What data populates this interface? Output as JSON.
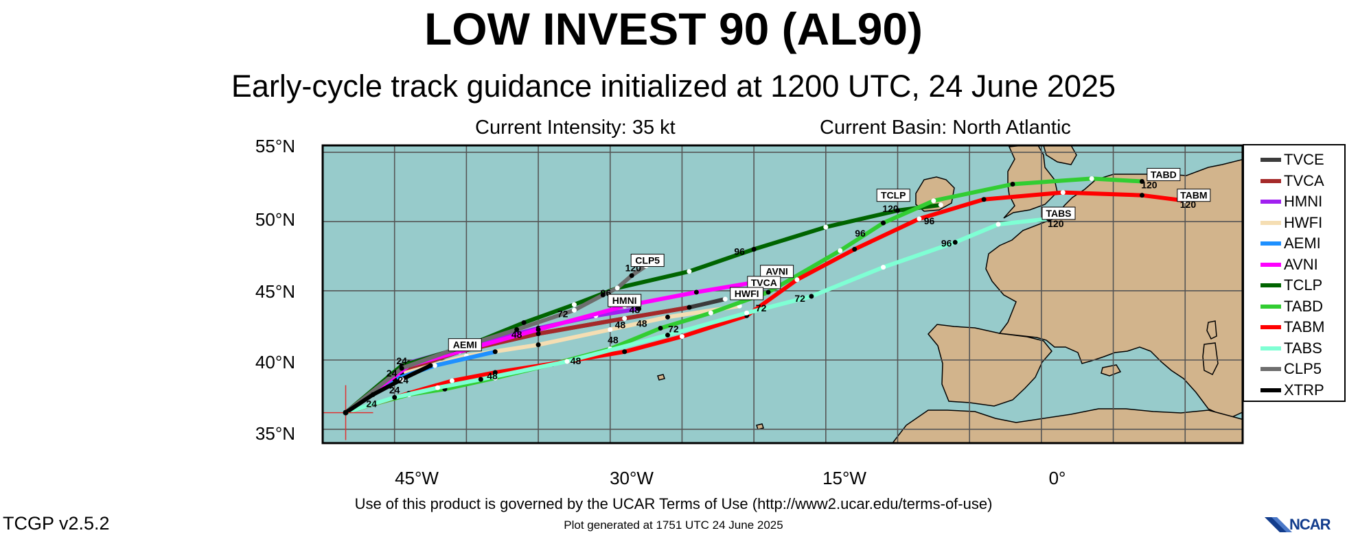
{
  "header": {
    "title": "LOW INVEST 90 (AL90)",
    "subtitle": "Early-cycle track guidance initialized at 1200 UTC, 24 June 2025",
    "current_intensity": "Current Intensity: 35 kt",
    "current_basin": "Current Basin: North Atlantic"
  },
  "map": {
    "lat_range": [
      34,
      55.5
    ],
    "lon_range": [
      -50,
      14
    ],
    "lat_ticks": [
      "55°N",
      "50°N",
      "45°N",
      "40°N",
      "35°N"
    ],
    "lat_values": [
      55,
      50,
      45,
      40,
      35
    ],
    "lon_ticks": [
      "45°W",
      "30°W",
      "15°W",
      "0°"
    ],
    "lon_values": [
      -45,
      -30,
      -15,
      0
    ],
    "grid": true,
    "ocean_color": "#97cbcb",
    "land_color": "#d2b48c",
    "storm_position": {
      "lon": -48.4,
      "lat": 36.2
    }
  },
  "chart_data": {
    "type": "line",
    "title": "LOW INVEST 90 (AL90)",
    "x_axis": "Longitude",
    "y_axis": "Latitude",
    "series": [
      {
        "name": "TVCE",
        "color": "#3c3c3c",
        "points": [
          [
            -48.4,
            36.2
          ],
          [
            -44.5,
            39.2
          ],
          [
            -40.5,
            40.6
          ],
          [
            -35,
            41.9
          ],
          [
            -29,
            43.0
          ],
          [
            -24.5,
            43.8
          ],
          [
            -22,
            44.4
          ]
        ]
      },
      {
        "name": "TVCA",
        "color": "#a52a2a",
        "points": [
          [
            -48.4,
            36.2
          ],
          [
            -44.5,
            39.2
          ],
          [
            -40.5,
            40.6
          ],
          [
            -35,
            41.9
          ],
          [
            -29,
            43.0
          ],
          [
            -24.5,
            43.8
          ]
        ]
      },
      {
        "name": "HMNI",
        "color": "#a020f0",
        "points": [
          [
            -48.4,
            36.2
          ],
          [
            -44,
            39.8
          ],
          [
            -39.5,
            41.1
          ],
          [
            -35,
            42.3
          ],
          [
            -31,
            43.2
          ],
          [
            -28,
            43.7
          ]
        ]
      },
      {
        "name": "HWFI",
        "color": "#f5deb3",
        "points": [
          [
            -48.4,
            36.2
          ],
          [
            -44.5,
            39.0
          ],
          [
            -40,
            40.3
          ],
          [
            -35,
            41.1
          ],
          [
            -30,
            42.2
          ],
          [
            -26,
            43.1
          ],
          [
            -21,
            43.9
          ]
        ]
      },
      {
        "name": "AEMI",
        "color": "#1e90ff",
        "points": [
          [
            -48.4,
            36.2
          ],
          [
            -45,
            38.6
          ],
          [
            -42.2,
            39.6
          ],
          [
            -38,
            40.6
          ]
        ]
      },
      {
        "name": "AVNI",
        "color": "#ff00ff",
        "points": [
          [
            -48.4,
            36.2
          ],
          [
            -44,
            39.6
          ],
          [
            -39.5,
            40.9
          ],
          [
            -35,
            42.2
          ],
          [
            -29,
            43.9
          ],
          [
            -24,
            44.9
          ],
          [
            -20,
            45.6
          ]
        ]
      },
      {
        "name": "TCLP",
        "color": "#006400",
        "points": [
          [
            -48.4,
            36.2
          ],
          [
            -44.5,
            39.6
          ],
          [
            -40,
            41.0
          ],
          [
            -36,
            42.7
          ],
          [
            -32.5,
            44.0
          ],
          [
            -29.5,
            45.2
          ],
          [
            -24.5,
            46.4
          ],
          [
            -20,
            48.0
          ],
          [
            -15,
            49.6
          ],
          [
            -10,
            50.8
          ],
          [
            -7,
            51.2
          ]
        ]
      },
      {
        "name": "TABD",
        "color": "#32cd32",
        "points": [
          [
            -48.4,
            36.2
          ],
          [
            -46.5,
            36.8
          ],
          [
            -44,
            37.5
          ],
          [
            -41.5,
            37.9
          ],
          [
            -38,
            38.7
          ],
          [
            -34,
            39.7
          ],
          [
            -30,
            40.8
          ],
          [
            -26.5,
            42.3
          ],
          [
            -23,
            43.4
          ],
          [
            -19,
            44.9
          ],
          [
            -14,
            47.9
          ],
          [
            -11,
            49.9
          ],
          [
            -7.5,
            51.5
          ],
          [
            -2,
            52.7
          ],
          [
            3.5,
            53.1
          ],
          [
            7,
            52.9
          ]
        ]
      },
      {
        "name": "TABM",
        "color": "#ff0000",
        "points": [
          [
            -48.4,
            36.2
          ],
          [
            -44,
            37.6
          ],
          [
            -41,
            38.5
          ],
          [
            -38,
            39.1
          ],
          [
            -33,
            39.9
          ],
          [
            -29,
            40.6
          ],
          [
            -25,
            41.7
          ],
          [
            -20.5,
            43.2
          ],
          [
            -17,
            45.8
          ],
          [
            -13,
            48.0
          ],
          [
            -8.5,
            50.2
          ],
          [
            -4,
            51.6
          ],
          [
            1.5,
            52.1
          ],
          [
            7,
            51.9
          ],
          [
            10,
            51.5
          ]
        ]
      },
      {
        "name": "TABS",
        "color": "#7fffd4",
        "points": [
          [
            -48.4,
            36.2
          ],
          [
            -45,
            37.3
          ],
          [
            -42,
            38.0
          ],
          [
            -39,
            38.6
          ],
          [
            -33,
            39.9
          ],
          [
            -26,
            41.8
          ],
          [
            -20.5,
            43.4
          ],
          [
            -16,
            44.6
          ],
          [
            -11,
            46.7
          ],
          [
            -6,
            48.5
          ],
          [
            -3,
            49.8
          ],
          [
            0.5,
            50.2
          ]
        ]
      },
      {
        "name": "CLP5",
        "color": "#6e6e6e",
        "points": [
          [
            -48.4,
            36.2
          ],
          [
            -44.5,
            39.4
          ],
          [
            -40.5,
            40.9
          ],
          [
            -36.5,
            42.2
          ],
          [
            -32.5,
            43.6
          ],
          [
            -30.5,
            44.7
          ],
          [
            -29.5,
            45.2
          ],
          [
            -28.5,
            46.1
          ],
          [
            -27.5,
            46.8
          ]
        ]
      },
      {
        "name": "XTRP",
        "color": "#000000",
        "points": [
          [
            -48.4,
            36.2
          ],
          [
            -46.5,
            37.5
          ],
          [
            -44.5,
            38.6
          ],
          [
            -42.5,
            39.6
          ]
        ]
      }
    ],
    "forecast_hour_labels": [
      {
        "text": "24",
        "lon": -44.5,
        "lat": 39.7
      },
      {
        "text": "24",
        "lon": -45.2,
        "lat": 38.8
      },
      {
        "text": "24",
        "lon": -44.4,
        "lat": 38.3
      },
      {
        "text": "24",
        "lon": -45.0,
        "lat": 37.6
      },
      {
        "text": "24",
        "lon": -46.6,
        "lat": 36.6
      },
      {
        "text": "48",
        "lon": -36.5,
        "lat": 41.6
      },
      {
        "text": "48",
        "lon": -28.3,
        "lat": 43.4
      },
      {
        "text": "48",
        "lon": -29.3,
        "lat": 42.3
      },
      {
        "text": "48",
        "lon": -29.8,
        "lat": 41.2
      },
      {
        "text": "48",
        "lon": -27.8,
        "lat": 42.4
      },
      {
        "text": "48",
        "lon": -32.4,
        "lat": 39.7
      },
      {
        "text": "48",
        "lon": -38.2,
        "lat": 38.6
      },
      {
        "text": "72",
        "lon": -33.3,
        "lat": 43.1
      },
      {
        "text": "72",
        "lon": -25.6,
        "lat": 42.0
      },
      {
        "text": "72",
        "lon": -19.5,
        "lat": 43.5
      },
      {
        "text": "72",
        "lon": -16.8,
        "lat": 44.2
      },
      {
        "text": "96",
        "lon": -30.3,
        "lat": 44.6
      },
      {
        "text": "96",
        "lon": -21.0,
        "lat": 47.6
      },
      {
        "text": "96",
        "lon": -12.6,
        "lat": 48.9
      },
      {
        "text": "96",
        "lon": -7.8,
        "lat": 49.8
      },
      {
        "text": "96",
        "lon": -6.6,
        "lat": 48.2
      },
      {
        "text": "120",
        "lon": -28.4,
        "lat": 46.4
      },
      {
        "text": "120",
        "lon": -10.5,
        "lat": 50.7
      },
      {
        "text": "120",
        "lon": 7.5,
        "lat": 52.4
      },
      {
        "text": "120",
        "lon": 10.2,
        "lat": 51.0
      },
      {
        "text": "120",
        "lon": 1.0,
        "lat": 49.6
      }
    ],
    "track_tags": [
      {
        "text": "CLP5",
        "lon": -27.4,
        "lat": 47.0
      },
      {
        "text": "HMNI",
        "lon": -29.0,
        "lat": 44.1
      },
      {
        "text": "AEMI",
        "lon": -40.1,
        "lat": 40.9
      },
      {
        "text": "AVNI",
        "lon": -18.4,
        "lat": 46.2
      },
      {
        "text": "TVCA",
        "lon": -19.3,
        "lat": 45.4
      },
      {
        "text": "HWFI",
        "lon": -20.5,
        "lat": 44.6
      },
      {
        "text": "TCLP",
        "lon": -10.3,
        "lat": 51.7
      },
      {
        "text": "TABD",
        "lon": 8.5,
        "lat": 53.2
      },
      {
        "text": "TABM",
        "lon": 10.6,
        "lat": 51.7
      },
      {
        "text": "TABS",
        "lon": 1.2,
        "lat": 50.4
      }
    ]
  },
  "legend": {
    "items": [
      {
        "label": "TVCE",
        "color": "#3c3c3c"
      },
      {
        "label": "TVCA",
        "color": "#a52a2a"
      },
      {
        "label": "HMNI",
        "color": "#a020f0"
      },
      {
        "label": "HWFI",
        "color": "#f5deb3"
      },
      {
        "label": "AEMI",
        "color": "#1e90ff"
      },
      {
        "label": "AVNI",
        "color": "#ff00ff"
      },
      {
        "label": "TCLP",
        "color": "#006400"
      },
      {
        "label": "TABD",
        "color": "#32cd32"
      },
      {
        "label": "TABM",
        "color": "#ff0000"
      },
      {
        "label": "TABS",
        "color": "#7fffd4"
      },
      {
        "label": "CLP5",
        "color": "#6e6e6e"
      },
      {
        "label": "XTRP",
        "color": "#000000"
      }
    ]
  },
  "footer": {
    "terms": "Use of this product is governed by the UCAR Terms of Use (http://www2.ucar.edu/terms-of-use)",
    "generated": "Plot generated at 1751 UTC   24 June 2025",
    "version": "TCGP v2.5.2",
    "logo": "NCAR"
  }
}
